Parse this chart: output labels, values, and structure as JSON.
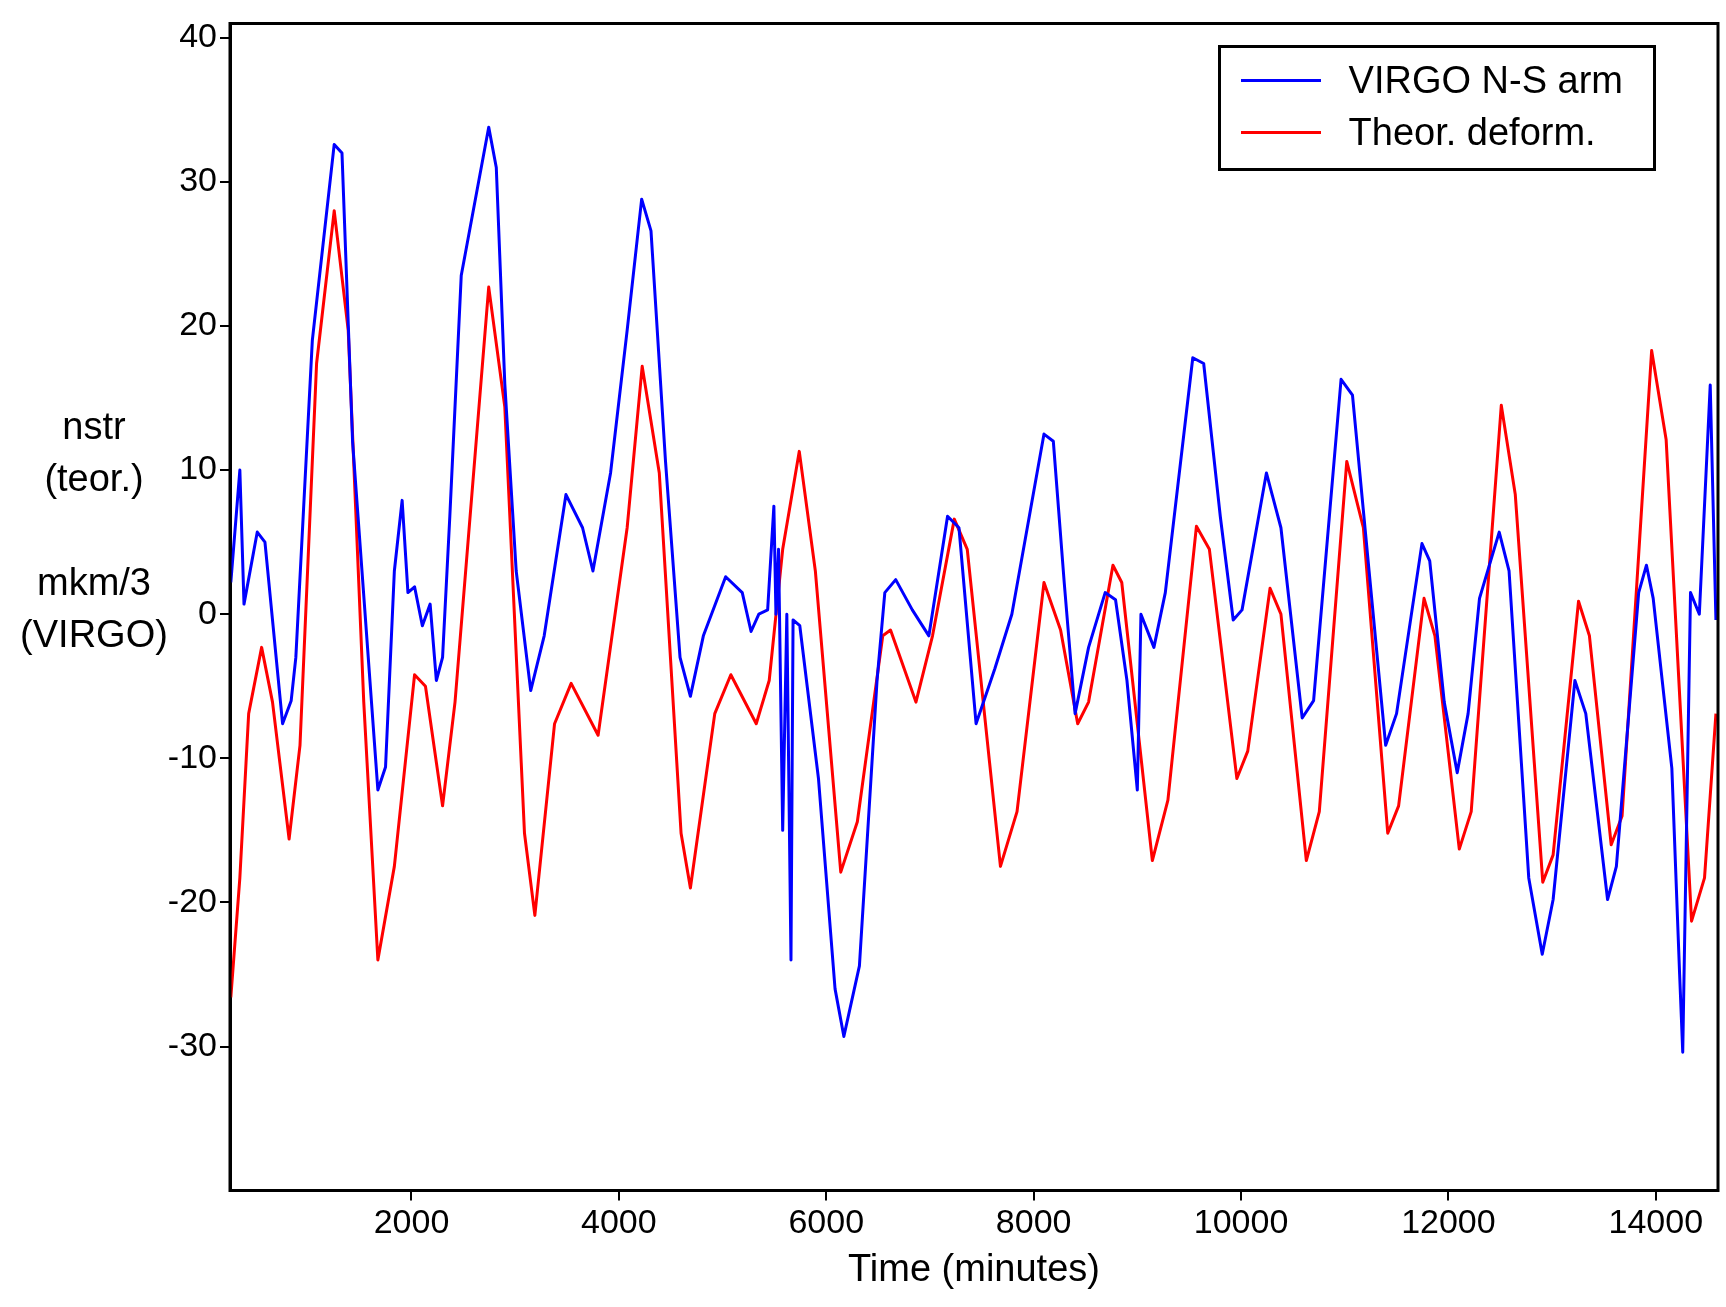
{
  "chart_data": {
    "type": "line",
    "xlabel": "Time (minutes)",
    "ylabel": "nstr\n(teor.)\n\nmkm/3\n(VIRGO)",
    "xlim": [
      250,
      14600
    ],
    "xticks": [
      2000,
      4000,
      6000,
      8000,
      10000,
      12000,
      14000
    ],
    "ylim": [
      -40,
      41
    ],
    "yticks": [
      -30,
      -20,
      -10,
      0,
      10,
      20,
      30,
      40
    ],
    "grid": false,
    "legend": "top right",
    "marker": "none",
    "line_style": "solid",
    "series": [
      {
        "name": "VIRGO N-S arm",
        "color": "#0000ff",
        "x": [
          258,
          345,
          385,
          513,
          587,
          757,
          840,
          885,
          1044,
          1255,
          1330,
          1432,
          1676,
          1750,
          1835,
          1910,
          1966,
          2030,
          2105,
          2180,
          2240,
          2300,
          2370,
          2480,
          2745,
          2818,
          2900,
          3010,
          3150,
          3280,
          3490,
          3650,
          3750,
          3920,
          4080,
          4220,
          4310,
          4450,
          4590,
          4690,
          4815,
          5030,
          5190,
          5275,
          5350,
          5435,
          5495,
          5515,
          5540,
          5580,
          5620,
          5660,
          5680,
          5745,
          5925,
          6085,
          6170,
          6320,
          6490,
          6565,
          6670,
          6830,
          6990,
          7170,
          7280,
          7445,
          7625,
          7790,
          8100,
          8190,
          8295,
          8400,
          8530,
          8690,
          8790,
          8900,
          9000,
          9035,
          9160,
          9270,
          9535,
          9640,
          9800,
          9925,
          10010,
          10245,
          10385,
          10590,
          10700,
          10965,
          11075,
          11235,
          11395,
          11500,
          11745,
          11820,
          11960,
          12085,
          12190,
          12300,
          12490,
          12585,
          12775,
          12905,
          13010,
          13220,
          13325,
          13535,
          13620,
          13835,
          13910,
          13975,
          14155,
          14230,
          14260,
          14335,
          14420,
          14525,
          14580
        ],
        "values": [
          2.2,
          10,
          0.7,
          5.7,
          5,
          -7.6,
          -6,
          -3,
          19,
          32.6,
          32,
          12,
          -12.2,
          -10.6,
          3,
          7.9,
          1.5,
          1.9,
          -0.8,
          0.7,
          -4.6,
          -3,
          6.8,
          23.5,
          33.8,
          31,
          16,
          3,
          -5.3,
          -1.5,
          8.3,
          6,
          3,
          9.8,
          19.7,
          28.8,
          26.6,
          10.6,
          -3,
          -5.7,
          -1.5,
          2.6,
          1.5,
          -1.2,
          0,
          0.3,
          7.5,
          0,
          4.5,
          -15,
          0,
          -24,
          -0.4,
          -0.8,
          -11.4,
          -26,
          -29.3,
          -24.4,
          -4.6,
          1.5,
          2.4,
          0.3,
          -1.5,
          6.8,
          6,
          -7.6,
          -3.8,
          0,
          12.5,
          12,
          2.2,
          -6.9,
          -2.3,
          1.5,
          1,
          -4.6,
          -12.2,
          0,
          -2.3,
          1.5,
          17.8,
          17.4,
          6.8,
          -0.4,
          0.3,
          9.8,
          6,
          -7.2,
          -6,
          16.3,
          15.2,
          3,
          -9.1,
          -6.9,
          4.9,
          3.7,
          -6.1,
          -11,
          -6.9,
          1.1,
          5.7,
          3,
          -18.3,
          -23.6,
          -19.8,
          -4.6,
          -6.9,
          -19.8,
          -17.5,
          1.5,
          3.4,
          1.1,
          -10.7,
          -25,
          -30.4,
          1.5,
          0,
          15.9,
          -0.4
        ]
      },
      {
        "name": "Theor. deform.",
        "color": "#ff0000",
        "x": [
          258,
          345,
          430,
          555,
          660,
          820,
          925,
          1085,
          1255,
          1390,
          1540,
          1676,
          1835,
          2030,
          2135,
          2300,
          2420,
          2745,
          2900,
          3090,
          3190,
          3380,
          3540,
          3800,
          4080,
          4225,
          4390,
          4600,
          4690,
          4925,
          5080,
          5325,
          5450,
          5580,
          5740,
          5895,
          6140,
          6300,
          6545,
          6620,
          6865,
          7025,
          7235,
          7360,
          7680,
          7840,
          8100,
          8260,
          8425,
          8530,
          8765,
          8850,
          9145,
          9295,
          9570,
          9695,
          9960,
          10065,
          10280,
          10385,
          10630,
          10755,
          11020,
          11180,
          11415,
          11520,
          11765,
          11870,
          12105,
          12220,
          12510,
          12645,
          12910,
          13010,
          13255,
          13360,
          13570,
          13675,
          13960,
          14100,
          14345,
          14470,
          14580
        ],
        "values": [
          -26.6,
          -18.3,
          -6.9,
          -2.3,
          -6.1,
          -15.6,
          -9.1,
          17.4,
          28,
          19.7,
          -6.1,
          -24,
          -17.5,
          -4.2,
          -5,
          -13.3,
          -6.1,
          22.7,
          14.4,
          -15.2,
          -20.9,
          -7.6,
          -4.8,
          -8.4,
          6,
          17.2,
          9.8,
          -15.2,
          -19,
          -6.9,
          -4.2,
          -7.6,
          -4.6,
          4.5,
          11.3,
          3,
          -17.9,
          -14.4,
          -1.5,
          -1.1,
          -6.1,
          -1.5,
          6.6,
          4.5,
          -17.5,
          -13.7,
          2.2,
          -1.1,
          -7.6,
          -6.1,
          3.4,
          2.2,
          -17.1,
          -12.9,
          6.1,
          4.5,
          -11.4,
          -9.5,
          1.8,
          0,
          -17.1,
          -13.7,
          10.6,
          6,
          -15.2,
          -13.3,
          1.1,
          -1.5,
          -16.3,
          -13.7,
          14.5,
          8.3,
          -18.6,
          -16.7,
          0.9,
          -1.5,
          -16,
          -14,
          18.3,
          12.1,
          -21.3,
          -18.3,
          -6.9
        ]
      }
    ]
  }
}
